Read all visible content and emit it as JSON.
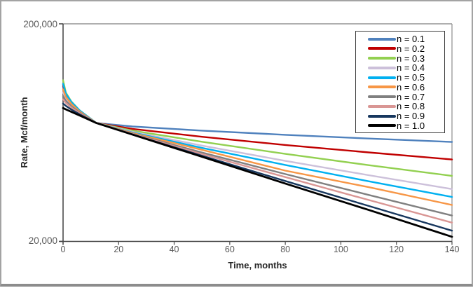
{
  "figure": {
    "border_color": "#a3a3a3",
    "background": "#ffffff"
  },
  "chart_data": {
    "type": "line",
    "title": "",
    "xlabel": "Time, months",
    "ylabel": "Rate, Mcf/month",
    "x_axis": {
      "min": 0,
      "max": 140,
      "scale": "linear",
      "ticks": [
        {
          "value": 0,
          "label": "0"
        },
        {
          "value": 20,
          "label": "20"
        },
        {
          "value": 40,
          "label": "40"
        },
        {
          "value": 60,
          "label": "60"
        },
        {
          "value": 80,
          "label": "80"
        },
        {
          "value": 100,
          "label": "100"
        },
        {
          "value": 120,
          "label": "120"
        },
        {
          "value": 140,
          "label": "140"
        }
      ]
    },
    "y_axis": {
      "min": 20000,
      "max": 200000,
      "scale": "log",
      "ticks": [
        {
          "value": 200000,
          "label": "200,000"
        },
        {
          "value": 20000,
          "label": "20,000"
        }
      ]
    },
    "grid": false,
    "legend_position": "top-right",
    "x": [
      0,
      1,
      3,
      6,
      12,
      25,
      50,
      80,
      110,
      140
    ],
    "series": [
      {
        "name": "n = 0.1",
        "color": "#4F81BD",
        "width": 2.4,
        "values": [
          103000,
          90800,
          83700,
          77600,
          70000,
          67500,
          64600,
          61800,
          59400,
          57300
        ]
      },
      {
        "name": "n = 0.2",
        "color": "#C00000",
        "width": 2.4,
        "values": [
          105000,
          93400,
          85700,
          78800,
          70000,
          65800,
          60500,
          55500,
          51300,
          47600
        ]
      },
      {
        "name": "n = 0.3",
        "color": "#92D050",
        "width": 2.4,
        "values": [
          110000,
          96500,
          87800,
          79900,
          70000,
          64600,
          57400,
          50500,
          44800,
          40000
        ]
      },
      {
        "name": "n = 0.4",
        "color": "#CCC0DA",
        "width": 2.4,
        "values": [
          97000,
          90100,
          84200,
          78300,
          70000,
          63800,
          55100,
          46900,
          40300,
          34800
        ]
      },
      {
        "name": "n = 0.5",
        "color": "#00B0F0",
        "width": 2.4,
        "values": [
          106000,
          95400,
          87400,
          79900,
          70000,
          63300,
          53800,
          44900,
          37800,
          32000
        ]
      },
      {
        "name": "n = 0.6",
        "color": "#F79646",
        "width": 2.4,
        "values": [
          100000,
          92300,
          85600,
          79000,
          70000,
          63000,
          52700,
          42300,
          35500,
          29400
        ]
      },
      {
        "name": "n = 0.7",
        "color": "#808080",
        "width": 2.4,
        "values": [
          93000,
          88500,
          83500,
          78100,
          70000,
          62500,
          51200,
          40800,
          32700,
          26300
        ]
      },
      {
        "name": "n = 0.8",
        "color": "#D99694",
        "width": 2.4,
        "values": [
          90000,
          86600,
          82400,
          77500,
          70000,
          62300,
          50400,
          39500,
          31000,
          24400
        ]
      },
      {
        "name": "n = 0.9",
        "color": "#17375E",
        "width": 2.4,
        "values": [
          86000,
          83900,
          80700,
          76700,
          70000,
          62000,
          49500,
          37900,
          29100,
          22400
        ]
      },
      {
        "name": "n = 1.0",
        "color": "#000000",
        "width": 2.8,
        "values": [
          82000,
          80900,
          78800,
          75800,
          70000,
          61900,
          49000,
          36900,
          27900,
          21000
        ]
      }
    ]
  }
}
